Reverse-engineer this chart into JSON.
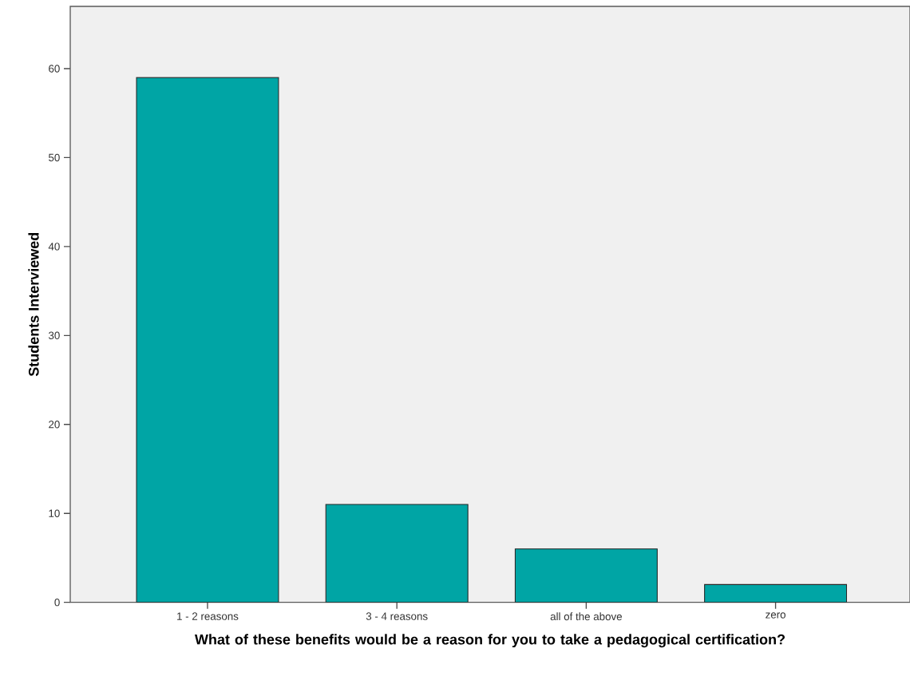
{
  "chart_data": {
    "type": "bar",
    "xlabel": "What of these benefits would be a reason for you to take a pedagogical certification?",
    "ylabel": "Students Interviewed",
    "categories": [
      "1 - 2 reasons",
      "3 - 4 reasons",
      "all of the above",
      "zero"
    ],
    "values": [
      59,
      11,
      6,
      2
    ],
    "color": "#00a5a5",
    "ylim": [
      0,
      67
    ],
    "yticks": [
      0,
      10,
      20,
      30,
      40,
      50,
      60
    ],
    "grid": false
  }
}
